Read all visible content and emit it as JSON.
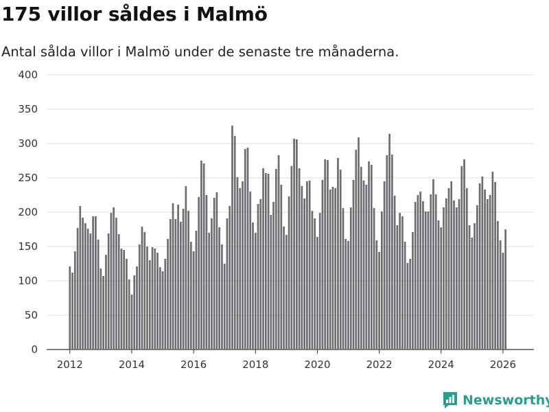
{
  "header": {
    "title": "175 villor såldes i Malmö",
    "subtitle": "Antal sålda villor i Malmö under de senaste tre månaderna."
  },
  "branding": {
    "name": "Newsworthy",
    "icon": "newsworthy-logo-icon",
    "color": "#2a9d8f"
  },
  "chart_data": {
    "type": "bar",
    "title": "175 villor såldes i Malmö",
    "subtitle": "Antal sålda villor i Malmö under de senaste tre månaderna.",
    "xlabel": "",
    "ylabel": "",
    "x_start": 2012.0,
    "x_step": 0.08333,
    "xlim": [
      2011.25,
      2027.0
    ],
    "ylim": [
      0,
      400
    ],
    "yticks": [
      0,
      50,
      100,
      150,
      200,
      250,
      300,
      350,
      400
    ],
    "xticks": [
      2012,
      2014,
      2016,
      2018,
      2020,
      2022,
      2024,
      2026
    ],
    "grid": true,
    "bar_color": "#6d6c70",
    "highlight_color": "#2a9d8f",
    "highlight_index": 170,
    "highlight_label": "175",
    "values": [
      121,
      112,
      143,
      177,
      209,
      192,
      184,
      176,
      169,
      194,
      194,
      160,
      118,
      107,
      138,
      169,
      199,
      207,
      192,
      168,
      147,
      145,
      132,
      102,
      80,
      108,
      121,
      153,
      179,
      171,
      150,
      130,
      149,
      147,
      141,
      120,
      114,
      132,
      161,
      190,
      213,
      190,
      211,
      186,
      205,
      238,
      202,
      157,
      143,
      173,
      222,
      275,
      271,
      225,
      170,
      191,
      221,
      229,
      178,
      153,
      125,
      191,
      209,
      326,
      311,
      251,
      235,
      245,
      292,
      294,
      230,
      185,
      170,
      212,
      219,
      264,
      257,
      256,
      196,
      215,
      263,
      283,
      240,
      179,
      167,
      223,
      267,
      307,
      306,
      264,
      238,
      220,
      245,
      246,
      202,
      191,
      164,
      199,
      247,
      277,
      276,
      233,
      237,
      235,
      279,
      262,
      206,
      161,
      158,
      207,
      247,
      291,
      309,
      266,
      246,
      240,
      274,
      269,
      206,
      159,
      142,
      201,
      245,
      283,
      314,
      284,
      224,
      181,
      199,
      194,
      157,
      126,
      132,
      171,
      215,
      225,
      230,
      216,
      201,
      201,
      226,
      248,
      226,
      188,
      178,
      207,
      220,
      235,
      245,
      217,
      207,
      219,
      267,
      277,
      235,
      181,
      163,
      184,
      210,
      242,
      252,
      233,
      219,
      225,
      259,
      244,
      187,
      159,
      141,
      175
    ]
  }
}
